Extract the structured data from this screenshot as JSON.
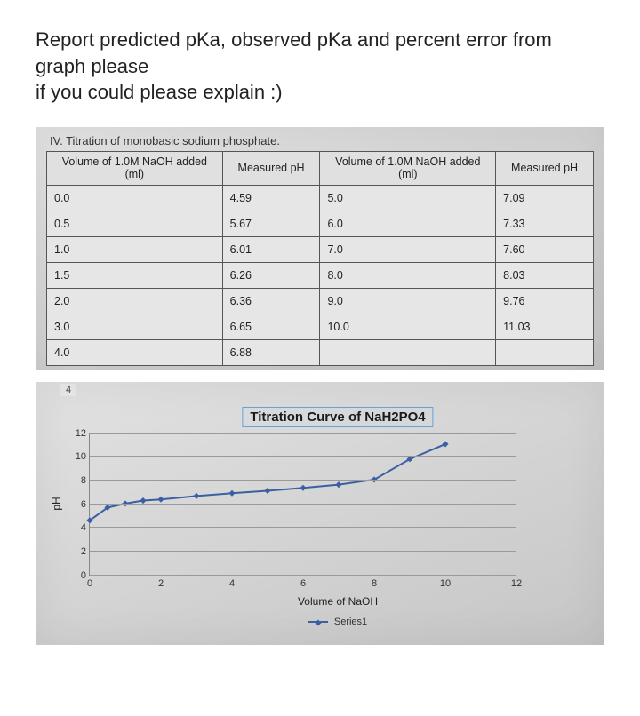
{
  "question": {
    "line1": "Report predicted pKa, observed pKa and percent error from graph please",
    "line2": "if you could please explain :)"
  },
  "table_panel": {
    "header": "IV. Titration of monobasic sodium phosphate.",
    "columns": {
      "vol_a": "Volume of 1.0M NaOH added (ml)",
      "ph_a": "Measured pH",
      "vol_b": "Volume of 1.0M NaOH added (ml)",
      "ph_b": "Measured pH"
    },
    "rows": [
      {
        "va": "0.0",
        "pa": "4.59",
        "vb": "5.0",
        "pb": "7.09"
      },
      {
        "va": "0.5",
        "pa": "5.67",
        "vb": "6.0",
        "pb": "7.33"
      },
      {
        "va": "1.0",
        "pa": "6.01",
        "vb": "7.0",
        "pb": "7.60"
      },
      {
        "va": "1.5",
        "pa": "6.26",
        "vb": "8.0",
        "pb": "8.03"
      },
      {
        "va": "2.0",
        "pa": "6.36",
        "vb": "9.0",
        "pb": "9.76"
      },
      {
        "va": "3.0",
        "pa": "6.65",
        "vb": "10.0",
        "pb": "11.03"
      },
      {
        "va": "4.0",
        "pa": "6.88",
        "vb": "",
        "pb": ""
      }
    ]
  },
  "chart": {
    "tab": "4",
    "title": "Titration Curve of NaH2PO4",
    "type": "line",
    "x_label": "Volume of NaOH",
    "y_label": "pH",
    "legend": "Series1",
    "series_color": "#3b5fa3",
    "marker_color": "#3b5fa3",
    "grid_color": "#9a9a9a",
    "background_color": "#d8d8d8",
    "line_width": 2,
    "marker_size": 5,
    "xlim": [
      0,
      12
    ],
    "ylim": [
      0,
      12
    ],
    "y_ticks": [
      0,
      2,
      4,
      6,
      8,
      10,
      12
    ],
    "x_ticks": [
      0,
      2,
      4,
      6,
      8,
      10,
      12
    ],
    "points": [
      {
        "x": 0.0,
        "y": 4.59
      },
      {
        "x": 0.5,
        "y": 5.67
      },
      {
        "x": 1.0,
        "y": 6.01
      },
      {
        "x": 1.5,
        "y": 6.26
      },
      {
        "x": 2.0,
        "y": 6.36
      },
      {
        "x": 3.0,
        "y": 6.65
      },
      {
        "x": 4.0,
        "y": 6.88
      },
      {
        "x": 5.0,
        "y": 7.09
      },
      {
        "x": 6.0,
        "y": 7.33
      },
      {
        "x": 7.0,
        "y": 7.6
      },
      {
        "x": 8.0,
        "y": 8.03
      },
      {
        "x": 9.0,
        "y": 9.76
      },
      {
        "x": 10.0,
        "y": 11.03
      }
    ]
  }
}
